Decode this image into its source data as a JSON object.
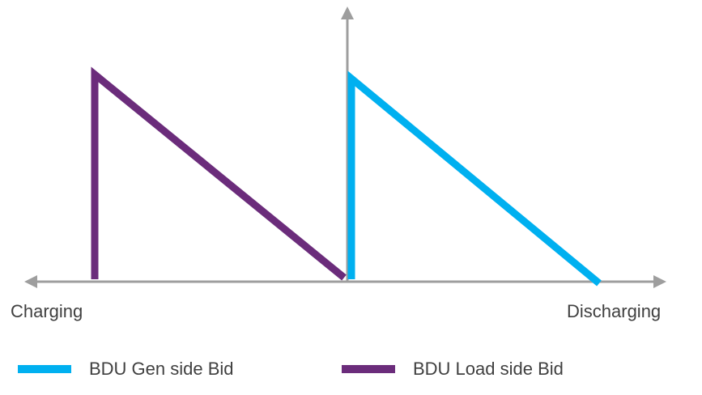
{
  "axis": {
    "left_label": "Charging",
    "right_label": "Discharging"
  },
  "legend": [
    {
      "label": "BDU Gen side Bid",
      "color": "#00b0f0"
    },
    {
      "label": "BDU Load side Bid",
      "color": "#6b2c7b"
    }
  ],
  "colors": {
    "axis": "#9e9e9e",
    "gen_side": "#00b0f0",
    "load_side": "#6b2c7b"
  }
}
